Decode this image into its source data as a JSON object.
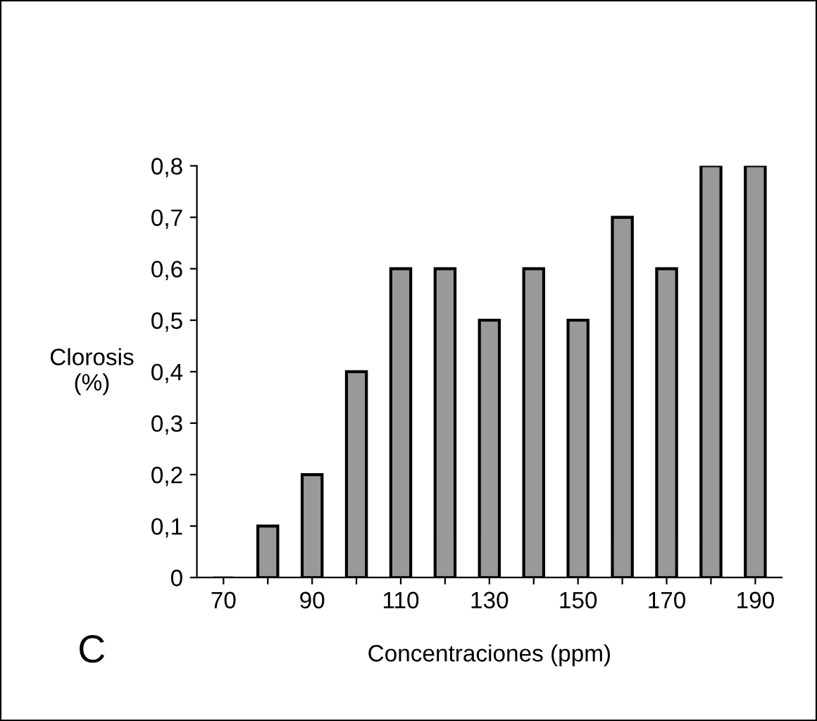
{
  "chart_data": {
    "type": "bar",
    "categories": [
      "70",
      null,
      "90",
      null,
      "110",
      null,
      "130",
      null,
      "150",
      null,
      "170",
      null,
      "190"
    ],
    "values": [
      0,
      0.1,
      0.2,
      0.4,
      0.6,
      0.6,
      0.5,
      0.6,
      0.5,
      0.7,
      0.6,
      0.8,
      0.8
    ],
    "color": "#999999",
    "ylim": [
      0,
      0.8
    ],
    "yticks": [
      0,
      {
        "value": 0.1,
        "label": "0,1"
      },
      {
        "value": 0.2,
        "label": "0,2"
      },
      {
        "value": 0.3,
        "label": "0,3"
      },
      {
        "value": 0.4,
        "label": "0,4"
      },
      {
        "value": 0.5,
        "label": "0,5"
      },
      {
        "value": 0.6,
        "label": "0,6"
      },
      {
        "value": 0.7,
        "label": "0,7"
      },
      {
        "value": 0.8,
        "label": "0,8"
      }
    ],
    "xlabel": "Concentraciones (ppm)",
    "ylabel": "Clorosis\n(%)",
    "annotations": [
      "C"
    ],
    "grid": false,
    "legend": false
  }
}
